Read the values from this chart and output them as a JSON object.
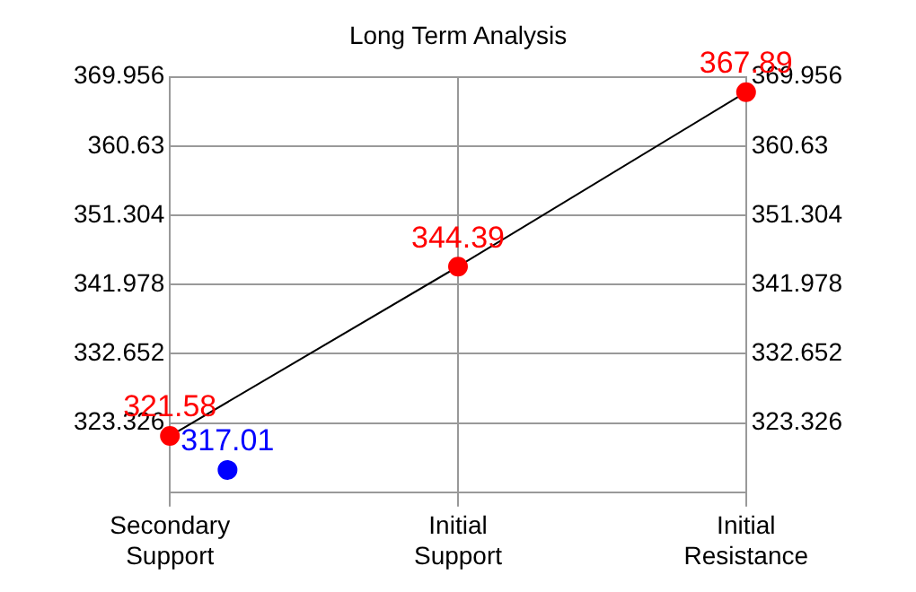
{
  "chart_data": {
    "type": "scatter",
    "title": "Long Term Analysis",
    "categories": [
      "Secondary Support",
      null,
      null,
      null,
      null,
      "Initial Support",
      null,
      null,
      null,
      null,
      "Initial Resistance"
    ],
    "ylim": [
      314,
      369.956
    ],
    "yticks": [
      323.326,
      332.652,
      341.978,
      351.304,
      360.63,
      369.956
    ],
    "y2lim": [
      314,
      369.956
    ],
    "y2ticks": [
      323.326,
      332.652,
      341.978,
      351.304,
      360.63,
      369.956
    ],
    "series": [
      {
        "type": "line",
        "color": "#000000",
        "colors": [
          "#ff0000",
          null,
          null,
          null,
          null,
          "#ff0000",
          null,
          null,
          null,
          null,
          "#ff0000"
        ],
        "values": [
          321.58,
          null,
          null,
          null,
          null,
          344.39,
          null,
          null,
          null,
          null,
          367.89
        ]
      },
      {
        "type": "scatter",
        "color": "#0000ff",
        "values": [
          null,
          317.01,
          null,
          null,
          null,
          null,
          null,
          null,
          null,
          null,
          null
        ]
      }
    ],
    "marker": "circle",
    "grid": true,
    "data_labels": true,
    "legend": false
  }
}
